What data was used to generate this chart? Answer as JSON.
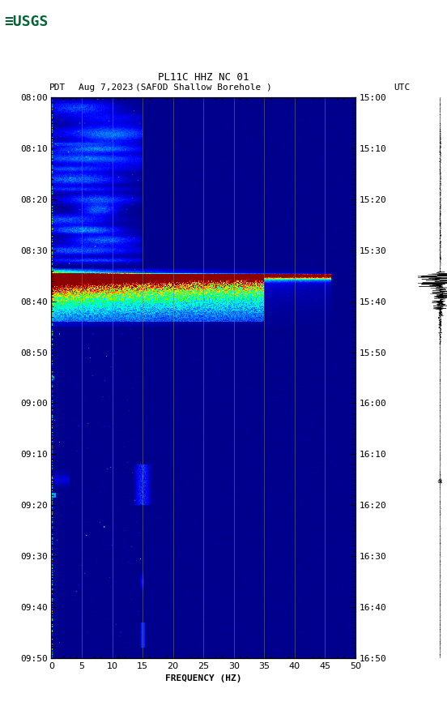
{
  "title_line1": "PL11C HHZ NC 01",
  "title_line2": "(SAFOD Shallow Borehole )",
  "date": "Aug 7,2023",
  "tz_left": "PDT",
  "tz_right": "UTC",
  "freq_min": 0,
  "freq_max": 50,
  "freq_label": "FREQUENCY (HZ)",
  "freq_ticks": [
    0,
    5,
    10,
    15,
    20,
    25,
    30,
    35,
    40,
    45,
    50
  ],
  "freq_gridlines": [
    5,
    10,
    15,
    20,
    25,
    30,
    35,
    40,
    45
  ],
  "time_tick_labels_left": [
    "08:00",
    "08:10",
    "08:20",
    "08:30",
    "08:40",
    "08:50",
    "09:00",
    "09:10",
    "09:20",
    "09:30",
    "09:40",
    "09:50"
  ],
  "time_tick_labels_right": [
    "15:00",
    "15:10",
    "15:20",
    "15:30",
    "15:40",
    "15:50",
    "16:00",
    "16:10",
    "16:20",
    "16:30",
    "16:40",
    "16:50"
  ],
  "background_color": "#ffffff",
  "plot_bg_color": "#00008B",
  "usgs_green": "#006633",
  "colormap_nodes": [
    [
      0.0,
      "#00008B"
    ],
    [
      0.1,
      "#0000FF"
    ],
    [
      0.25,
      "#0080FF"
    ],
    [
      0.38,
      "#00FFFF"
    ],
    [
      0.52,
      "#00FF80"
    ],
    [
      0.62,
      "#80FF00"
    ],
    [
      0.72,
      "#FFFF00"
    ],
    [
      0.82,
      "#FF8000"
    ],
    [
      0.9,
      "#FF2000"
    ],
    [
      1.0,
      "#8B0000"
    ]
  ]
}
